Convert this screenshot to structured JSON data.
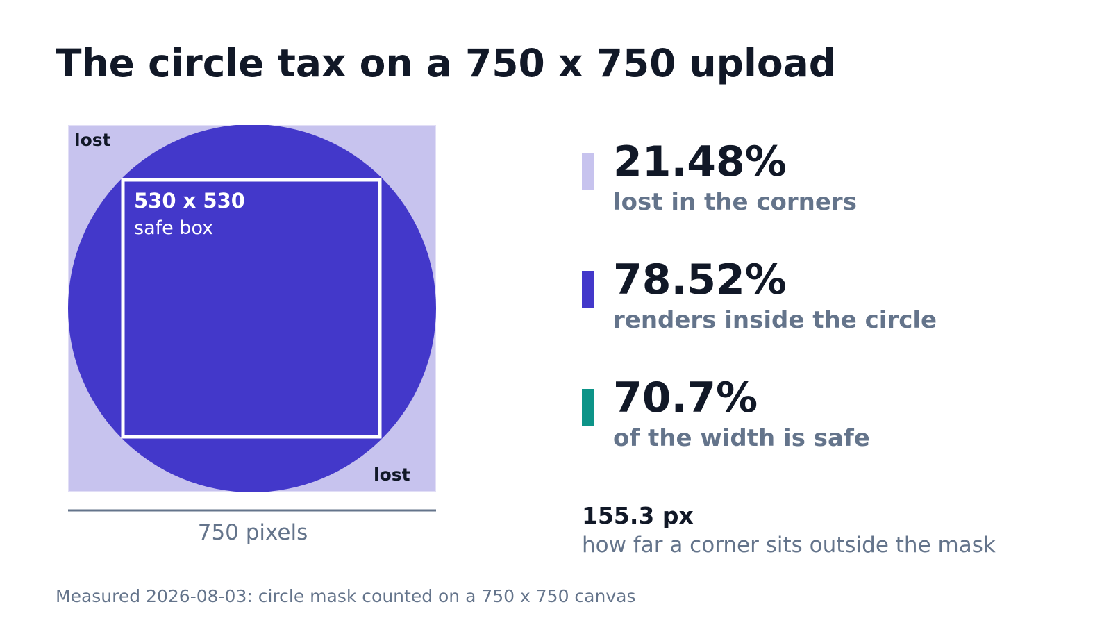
{
  "title": "The circle tax on a 750 x 750 upload",
  "diagram": {
    "corner_label_top": "lost",
    "corner_label_bottom": "lost",
    "safe_box_size": "530 x 530",
    "safe_box_label": "safe box",
    "width_label": "750 pixels"
  },
  "stats": [
    {
      "value": "21.48%",
      "label": "lost in the corners",
      "color": "#c7c3ee"
    },
    {
      "value": "78.52%",
      "label": "renders inside the circle",
      "color": "#4338ca"
    },
    {
      "value": "70.7%",
      "label": "of the width is safe",
      "color": "#0d9488"
    }
  ],
  "extra": {
    "value": "155.3 px",
    "label": "how far a corner sits outside the mask"
  },
  "footnote": "Measured 2026-08-03: circle mask counted on a 750 x 750 canvas",
  "colors": {
    "lost_area": "#c7c3ee",
    "circle": "#4338ca",
    "safe_box_outline": "#ffffff",
    "safe_accent": "#0d9488",
    "axis_line": "#64748b",
    "title_text": "#111827",
    "muted_text": "#64748b"
  }
}
